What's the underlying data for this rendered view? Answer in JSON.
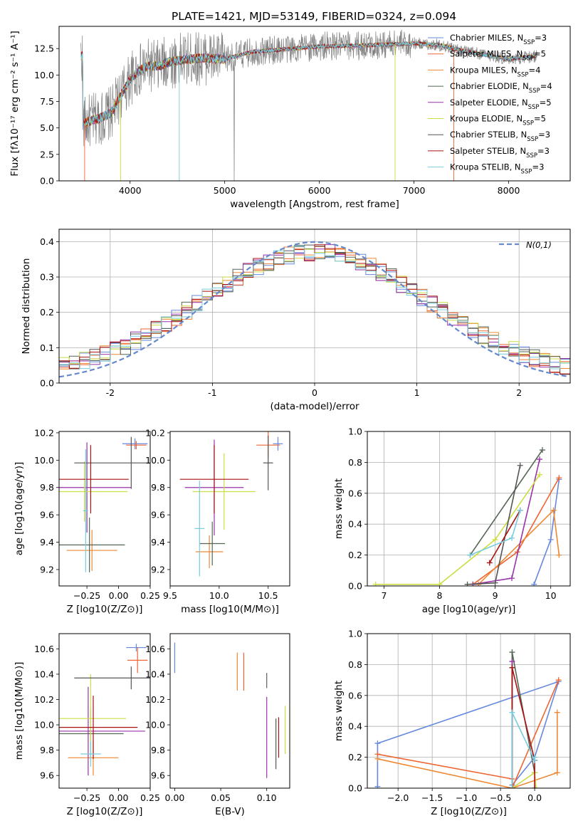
{
  "figure": {
    "title": "PLATE=1421, MJD=53149, FIBERID=0324, z=0.094"
  },
  "model_names": [
    "Chabrier MILES",
    "Salpeter MILES",
    "Kroupa MILES",
    "Chabrier ELODIE",
    "Salpeter ELODIE",
    "Kroupa ELODIE",
    "Chabrier STELIB",
    "Salpeter STELIB",
    "Kroupa STELIB"
  ],
  "model_nssp": [
    3,
    5,
    4,
    4,
    5,
    5,
    3,
    3,
    3
  ],
  "colors": {
    "data": "#808080",
    "models": [
      "#6688dd",
      "#ee6633",
      "#ee8833",
      "#556655",
      "#9933aa",
      "#ccdd44",
      "#555555",
      "#aa1111",
      "#77ccdd"
    ],
    "curve_a": "#6688dd",
    "curve_b": "#dd7722",
    "curve_c": "#dd88bb",
    "curve_d": "#55aa77",
    "curve_e": "#77ccdd",
    "curve_f": "#9933aa",
    "curve_g": "#ccee55",
    "curve_h": "#aa1111",
    "gauss": "#6688cc"
  },
  "chart_data": [
    {
      "id": "spectrum",
      "type": "line",
      "title": "PLATE=1421, MJD=53149, FIBERID=0324, z=0.094",
      "xlabel": "wavelength [Angstrom, rest frame]",
      "ylabel": "Flux [fλ10⁻¹⁷ erg cm⁻² s⁻¹ A⁻¹]",
      "xlim": [
        3250,
        8650
      ],
      "ylim": [
        0,
        14.6
      ],
      "xticks": [
        4000,
        5000,
        6000,
        7000,
        8000
      ],
      "yticks": [
        0.0,
        2.5,
        5.0,
        7.5,
        10.0,
        12.5
      ],
      "ytick_labels": [
        "0.0",
        "2.5",
        "5.0",
        "7.5",
        "10.0",
        "12.5"
      ],
      "continuum": {
        "x": [
          3500,
          3600,
          3700,
          3800,
          3900,
          4000,
          4100,
          4200,
          4300,
          4400,
          4600,
          4800,
          5000,
          5300,
          5600,
          6000,
          6500,
          7000,
          7300,
          7500,
          8000,
          8300
        ],
        "y": [
          5.4,
          5.7,
          6.0,
          6.4,
          8.0,
          9.6,
          10.4,
          10.9,
          10.8,
          11.2,
          11.5,
          11.6,
          11.5,
          12.2,
          12.4,
          12.7,
          12.8,
          13.0,
          12.8,
          12.3,
          11.5,
          11.8
        ]
      },
      "legend": "top-right"
    },
    {
      "id": "residuals",
      "type": "bar",
      "xlabel": "(data-model)/error",
      "ylabel": "Normed distribution",
      "xlim": [
        -2.5,
        2.5
      ],
      "ylim": [
        0,
        0.435
      ],
      "xticks": [
        -2,
        -1,
        0,
        1,
        2
      ],
      "yticks": [
        0.0,
        0.1,
        0.2,
        0.3,
        0.4
      ],
      "ytick_labels": [
        "0.0",
        "0.1",
        "0.2",
        "0.3",
        "0.4"
      ],
      "reference_label": "N(0,1)",
      "bin_width": 0.1,
      "legend": "top-right"
    },
    {
      "id": "age_vs_Z",
      "type": "scatter",
      "xlabel": "Z [log10(Z/Z⊙)]",
      "ylabel": "age  [log10(age/yr)]",
      "xlim": [
        -0.47,
        0.25
      ],
      "ylim": [
        9.08,
        10.21
      ],
      "xticks": [
        -0.25,
        0.0,
        0.25
      ],
      "xtick_labels": [
        "−0.25",
        "0.00",
        "0.25"
      ],
      "yticks": [
        9.2,
        9.4,
        9.6,
        9.8,
        10.0,
        10.2
      ],
      "ytick_labels": [
        "9.2",
        "9.4",
        "9.6",
        "9.8",
        "10.0",
        "10.2"
      ],
      "points": [
        {
          "x": 0.13,
          "y": 10.12,
          "xerr": 0.1,
          "yerr": 0.04
        },
        {
          "x": 0.14,
          "y": 10.11,
          "xerr": 0.08,
          "yerr": 0.03
        },
        {
          "x": -0.21,
          "y": 9.34,
          "xerr": 0.2,
          "yerr": 0.15
        },
        {
          "x": -0.23,
          "y": 9.38,
          "xerr": 0.28,
          "yerr": 0.2
        },
        {
          "x": -0.25,
          "y": 9.8,
          "xerr": 0.35,
          "yerr": 0.33
        },
        {
          "x": -0.27,
          "y": 9.77,
          "xerr": 0.34,
          "yerr": 0.22
        },
        {
          "x": 0.1,
          "y": 9.98,
          "xerr": 0.45,
          "yerr": 0.19
        },
        {
          "x": -0.22,
          "y": 9.86,
          "xerr": 0.3,
          "yerr": 0.25
        },
        {
          "x": -0.26,
          "y": 9.63,
          "xerr": 0.02,
          "yerr": 0.45
        }
      ]
    },
    {
      "id": "age_vs_mass",
      "type": "scatter",
      "xlabel": "mass [log10(M/M⊙)]",
      "xlim": [
        9.5,
        10.72
      ],
      "ylim": [
        9.08,
        10.21
      ],
      "xticks": [
        9.5,
        10.0,
        10.5
      ],
      "xtick_labels": [
        "9.5",
        "10.0",
        "10.5"
      ],
      "yticks": [
        9.2,
        9.4,
        9.6,
        9.8,
        10.0,
        10.2
      ],
      "ytick_labels": [
        "9.2",
        "9.4",
        "9.6",
        "9.8",
        "10.0",
        "10.2"
      ],
      "points": [
        {
          "x": 10.6,
          "y": 10.12,
          "xerr": 0.05,
          "yerr": 0.05
        },
        {
          "x": 10.5,
          "y": 10.11,
          "xerr": 0.12,
          "yerr": 0.1
        },
        {
          "x": 9.9,
          "y": 9.33,
          "xerr": 0.14,
          "yerr": 0.12
        },
        {
          "x": 9.93,
          "y": 9.39,
          "xerr": 0.13,
          "yerr": 0.16
        },
        {
          "x": 9.95,
          "y": 9.8,
          "xerr": 0.3,
          "yerr": 0.35
        },
        {
          "x": 10.05,
          "y": 9.77,
          "xerr": 0.32,
          "yerr": 0.28
        },
        {
          "x": 10.5,
          "y": 9.98,
          "xerr": 0.05,
          "yerr": 0.2
        },
        {
          "x": 9.95,
          "y": 9.86,
          "xerr": 0.35,
          "yerr": 0.25
        },
        {
          "x": 9.8,
          "y": 9.5,
          "xerr": 0.05,
          "yerr": 0.35
        }
      ]
    },
    {
      "id": "weight_vs_age",
      "type": "line",
      "xlabel": "age  [log10(age/yr)]",
      "ylabel": "mass weight",
      "xlim": [
        6.7,
        10.35
      ],
      "ylim": [
        0,
        1.0
      ],
      "xticks": [
        7,
        8,
        9,
        10
      ],
      "yticks": [
        0.0,
        0.2,
        0.4,
        0.6,
        0.8,
        1.0
      ],
      "ytick_labels": [
        "0.0",
        "0.2",
        "0.4",
        "0.6",
        "0.8",
        "1.0"
      ],
      "series": [
        {
          "x": [
            9.7,
            10.0,
            10.15
          ],
          "y": [
            0.01,
            0.3,
            0.69
          ]
        },
        {
          "x": [
            8.6,
            9.4,
            10.15
          ],
          "y": [
            0.01,
            0.22,
            0.7
          ]
        },
        {
          "x": [
            8.7,
            10.05,
            10.15
          ],
          "y": [
            0.01,
            0.49,
            0.2
          ]
        },
        {
          "x": [
            8.55,
            9.85
          ],
          "y": [
            0.2,
            0.88
          ]
        },
        {
          "x": [
            8.6,
            9.3,
            9.8
          ],
          "y": [
            0.01,
            0.05,
            0.82
          ]
        },
        {
          "x": [
            6.85,
            8.0,
            9.0,
            9.8
          ],
          "y": [
            0.01,
            0.01,
            0.3,
            0.72
          ]
        },
        {
          "x": [
            8.5,
            9.0,
            9.45
          ],
          "y": [
            0.01,
            0.02,
            0.78
          ]
        },
        {
          "x": [
            8.9,
            9.45
          ],
          "y": [
            0.15,
            0.49
          ]
        },
        {
          "x": [
            8.55,
            9.3,
            9.45
          ],
          "y": [
            0.2,
            0.31,
            0.49
          ]
        }
      ]
    },
    {
      "id": "mass_vs_Z",
      "type": "scatter",
      "xlabel": "Z [log10(Z/Z⊙)]",
      "ylabel": "mass [log10(M/M⊙)]",
      "xlim": [
        -0.47,
        0.25
      ],
      "ylim": [
        9.5,
        10.72
      ],
      "xticks": [
        -0.25,
        0.0,
        0.25
      ],
      "xtick_labels": [
        "−0.25",
        "0.00",
        "0.25"
      ],
      "yticks": [
        9.6,
        9.8,
        10.0,
        10.2,
        10.4,
        10.6
      ],
      "ytick_labels": [
        "9.6",
        "9.8",
        "10.0",
        "10.2",
        "10.4",
        "10.6"
      ],
      "points": [
        {
          "x": 0.14,
          "y": 10.61,
          "xerr": 0.08,
          "yerr": 0.03
        },
        {
          "x": 0.15,
          "y": 10.51,
          "xerr": 0.08,
          "yerr": 0.1
        },
        {
          "x": -0.2,
          "y": 9.74,
          "xerr": 0.2,
          "yerr": 0.14
        },
        {
          "x": -0.22,
          "y": 9.93,
          "xerr": 0.26,
          "yerr": 0.2
        },
        {
          "x": -0.24,
          "y": 9.95,
          "xerr": 0.45,
          "yerr": 0.35
        },
        {
          "x": -0.22,
          "y": 10.05,
          "xerr": 0.28,
          "yerr": 0.35
        },
        {
          "x": 0.1,
          "y": 10.37,
          "xerr": 0.45,
          "yerr": 0.09
        },
        {
          "x": -0.2,
          "y": 9.98,
          "xerr": 0.35,
          "yerr": 0.25
        },
        {
          "x": -0.22,
          "y": 9.77,
          "xerr": 0.08,
          "yerr": 0.1
        }
      ]
    },
    {
      "id": "mass_vs_ebv",
      "type": "scatter",
      "xlabel": "E(B-V)",
      "xlim": [
        -0.005,
        0.125
      ],
      "ylim": [
        9.5,
        10.72
      ],
      "xticks": [
        0.0,
        0.05,
        0.1
      ],
      "xtick_labels": [
        "0.00",
        "0.05",
        "0.10"
      ],
      "yticks": [
        9.6,
        9.8,
        10.0,
        10.2,
        10.4,
        10.6
      ],
      "ytick_labels": [
        "9.6",
        "9.8",
        "10.0",
        "10.2",
        "10.4",
        "10.6"
      ],
      "points": [
        {
          "x": 0.0,
          "y": 10.53,
          "xerr": 0,
          "yerr": 0.12
        },
        {
          "x": 0.075,
          "y": 10.42,
          "xerr": 0,
          "yerr": 0.15
        },
        {
          "x": 0.068,
          "y": 10.42,
          "xerr": 0,
          "yerr": 0.15
        },
        {
          "x": 0.1,
          "y": 10.35,
          "xerr": 0,
          "yerr": 0.06
        },
        {
          "x": 0.1,
          "y": 9.9,
          "xerr": 0,
          "yerr": 0.32
        },
        {
          "x": 0.12,
          "y": 9.96,
          "xerr": 0,
          "yerr": 0.19
        },
        {
          "x": 0.11,
          "y": 9.85,
          "xerr": 0,
          "yerr": 0.2
        },
        {
          "x": 0.113,
          "y": 9.9,
          "xerr": 0,
          "yerr": 0.16
        }
      ]
    },
    {
      "id": "weight_vs_Z",
      "type": "line",
      "xlabel": "Z [log10(Z/Z⊙)]",
      "ylabel": "mass weight",
      "xlim": [
        -2.45,
        0.52
      ],
      "ylim": [
        0,
        1.0
      ],
      "xticks": [
        -2.0,
        -1.5,
        -1.0,
        -0.5,
        0.0
      ],
      "xtick_labels": [
        "−2.0",
        "−1.5",
        "−1.0",
        "−0.5",
        "0.0"
      ],
      "yticks": [
        0.0,
        0.2,
        0.4,
        0.6,
        0.8,
        1.0
      ],
      "ytick_labels": [
        "0.0",
        "0.2",
        "0.4",
        "0.6",
        "0.8",
        "1.0"
      ],
      "series": [
        {
          "x": [
            -2.3,
            -2.3,
            0.35,
            0.0,
            -0.33
          ],
          "y": [
            0.01,
            0.29,
            0.69,
            0.2,
            0.02
          ]
        },
        {
          "x": [
            -2.3,
            -0.33,
            -0.33,
            0.35
          ],
          "y": [
            0.22,
            0.06,
            0.0,
            0.7
          ]
        },
        {
          "x": [
            -2.3,
            -0.33,
            0.33,
            0.33
          ],
          "y": [
            0.19,
            0.0,
            0.1,
            0.49
          ]
        },
        {
          "x": [
            -0.33,
            -0.33,
            0.0
          ],
          "y": [
            0.0,
            0.88,
            0.1
          ]
        },
        {
          "x": [
            -0.33,
            -0.33
          ],
          "y": [
            0.0,
            0.82
          ]
        },
        {
          "x": [
            -0.33,
            0.0,
            0.02
          ],
          "y": [
            0.0,
            0.1,
            0.0
          ]
        },
        {
          "x": [
            -0.33,
            -0.33
          ],
          "y": [
            0.0,
            0.78
          ]
        },
        {
          "x": [
            -0.33,
            -0.33,
            0.0,
            0.0
          ],
          "y": [
            0.0,
            0.78,
            0.18,
            0.0
          ]
        },
        {
          "x": [
            -0.33,
            -0.33,
            0.0,
            0.0
          ],
          "y": [
            0.0,
            0.49,
            0.18,
            0.2
          ]
        }
      ]
    }
  ]
}
